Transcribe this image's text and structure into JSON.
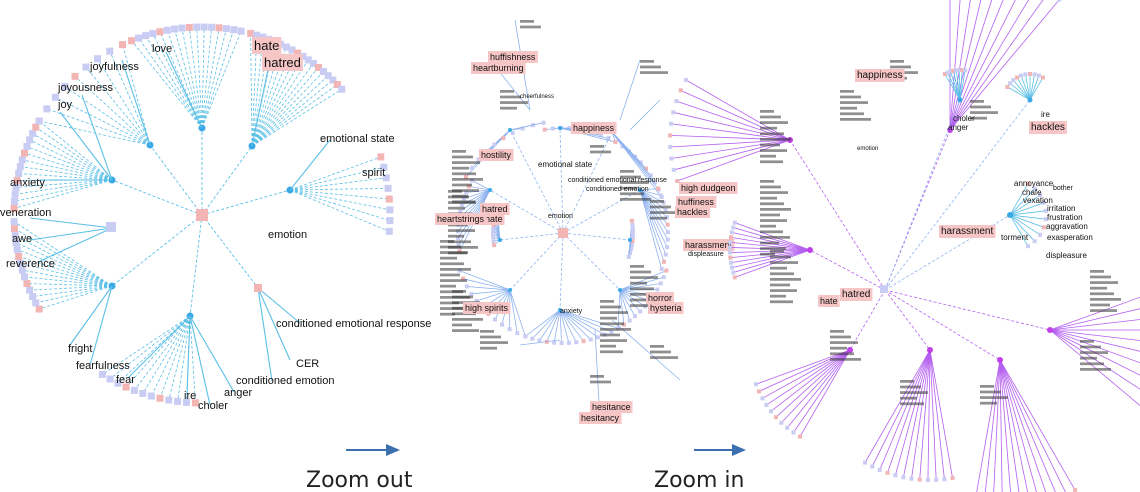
{
  "panels": {
    "left": {
      "labels": [
        {
          "id": "love",
          "text": "love"
        },
        {
          "id": "hate",
          "text": "hate",
          "highlight": true
        },
        {
          "id": "hatred",
          "text": "hatred",
          "highlight": true
        },
        {
          "id": "joyfulness",
          "text": "joyfulness"
        },
        {
          "id": "joyousness",
          "text": "joyousness"
        },
        {
          "id": "joy",
          "text": "joy"
        },
        {
          "id": "emotional-state",
          "text": "emotional state"
        },
        {
          "id": "spirit",
          "text": "spirit"
        },
        {
          "id": "anxiety",
          "text": "anxiety"
        },
        {
          "id": "veneration",
          "text": "veneration"
        },
        {
          "id": "awe",
          "text": "awe"
        },
        {
          "id": "reverence",
          "text": "reverence"
        },
        {
          "id": "emotion",
          "text": "emotion"
        },
        {
          "id": "conditioned-emotional-response",
          "text": "conditioned emotional response"
        },
        {
          "id": "cer",
          "text": "CER"
        },
        {
          "id": "fright",
          "text": "fright"
        },
        {
          "id": "fearfulness",
          "text": "fearfulness"
        },
        {
          "id": "fear",
          "text": "fear"
        },
        {
          "id": "ire",
          "text": "ire"
        },
        {
          "id": "choler",
          "text": "choler"
        },
        {
          "id": "anger",
          "text": "anger"
        },
        {
          "id": "conditioned-emotion",
          "text": "conditioned emotion"
        }
      ]
    },
    "middle": {
      "labels": [
        {
          "id": "huffishness",
          "text": "huffishness",
          "highlight": true
        },
        {
          "id": "heartburning",
          "text": "heartburning",
          "highlight": true
        },
        {
          "id": "happiness",
          "text": "happiness",
          "highlight": true
        },
        {
          "id": "hostility",
          "text": "hostility",
          "highlight": true
        },
        {
          "id": "emotional-state",
          "text": "emotional state"
        },
        {
          "id": "conditioned-emotional-response",
          "text": "conditioned emotional response"
        },
        {
          "id": "conditioned-emotion",
          "text": "conditioned emotion"
        },
        {
          "id": "high-dudgeon",
          "text": "high dudgeon",
          "highlight": true
        },
        {
          "id": "huffiness",
          "text": "huffiness",
          "highlight": true
        },
        {
          "id": "hackles",
          "text": "hackles",
          "highlight": true
        },
        {
          "id": "hatred",
          "text": "hatred",
          "highlight": true
        },
        {
          "id": "hate",
          "text": "hate",
          "highlight": true
        },
        {
          "id": "heartstrings",
          "text": "heartstrings",
          "highlight": true
        },
        {
          "id": "emotion",
          "text": "emotion"
        },
        {
          "id": "harassment",
          "text": "harassment",
          "highlight": true
        },
        {
          "id": "displeasure",
          "text": "displeasure"
        },
        {
          "id": "horror",
          "text": "horror",
          "highlight": true
        },
        {
          "id": "hysteria",
          "text": "hysteria",
          "highlight": true
        },
        {
          "id": "high-spirits",
          "text": "high spirits",
          "highlight": true
        },
        {
          "id": "hesitance",
          "text": "hesitance",
          "highlight": true
        },
        {
          "id": "hesitancy",
          "text": "hesitancy",
          "highlight": true
        },
        {
          "id": "anxiety",
          "text": "anxiety"
        },
        {
          "id": "cheerfulness",
          "text": "cheerfulness"
        }
      ]
    },
    "right": {
      "labels": [
        {
          "id": "happiness",
          "text": "happiness",
          "highlight": true
        },
        {
          "id": "emotion",
          "text": "emotion"
        },
        {
          "id": "choler",
          "text": "choler"
        },
        {
          "id": "anger",
          "text": "anger"
        },
        {
          "id": "ire",
          "text": "ire"
        },
        {
          "id": "hackles",
          "text": "hackles",
          "highlight": true
        },
        {
          "id": "annoyance",
          "text": "annoyance"
        },
        {
          "id": "chafe",
          "text": "chafe"
        },
        {
          "id": "vexation",
          "text": "vexation"
        },
        {
          "id": "bother",
          "text": "bother"
        },
        {
          "id": "irritation",
          "text": "irritation"
        },
        {
          "id": "frustration",
          "text": "frustration"
        },
        {
          "id": "aggravation",
          "text": "aggravation"
        },
        {
          "id": "exasperation",
          "text": "exasperation"
        },
        {
          "id": "harassment",
          "text": "harassment",
          "highlight": true
        },
        {
          "id": "torment",
          "text": "torment"
        },
        {
          "id": "displeasure",
          "text": "displeasure"
        },
        {
          "id": "hatred",
          "text": "hatred",
          "highlight": true
        },
        {
          "id": "hate",
          "text": "hate",
          "highlight": true
        }
      ]
    }
  },
  "captions": {
    "zoom_out": "Zoom out",
    "zoom_in": "Zoom in"
  },
  "colors": {
    "left_edge": "#5bbfe6",
    "middle_edge": "#8fb3ef",
    "right_edge": "#b45ff0",
    "node_blue": "#c9ccf3",
    "node_pink": "#f3b4b4",
    "node_core": "#3ba9e6",
    "highlight": "#f6c6c6",
    "arrow": "#3b6fb0",
    "text_blob": "#333333"
  },
  "icons": {
    "arrow": "arrow-right-icon"
  }
}
